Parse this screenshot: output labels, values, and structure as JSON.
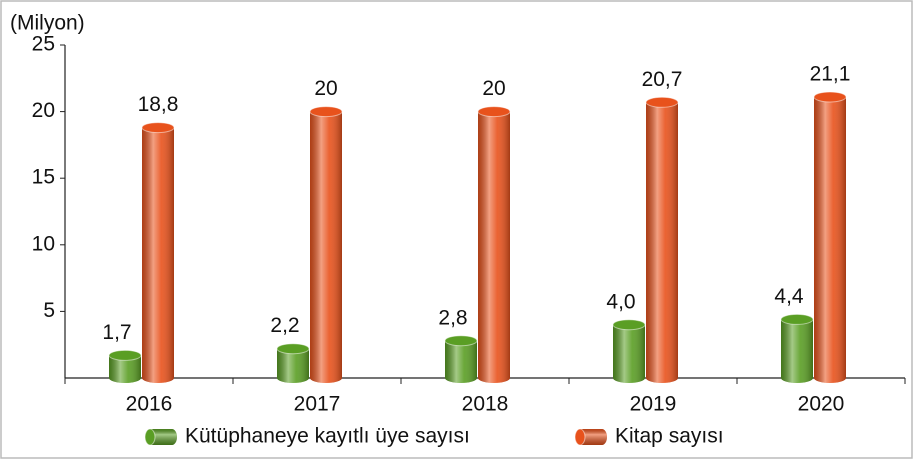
{
  "chart_data": {
    "type": "bar",
    "y_axis_label": "(Milyon)",
    "categories": [
      "2016",
      "2017",
      "2018",
      "2019",
      "2020"
    ],
    "series": [
      {
        "name": "Kütüphaneye kayıtlı üye sayısı",
        "color": "#5a9e24",
        "values": [
          1.7,
          2.2,
          2.8,
          4.0,
          4.4
        ],
        "value_labels": [
          "1,7",
          "2,2",
          "2,8",
          "4,0",
          "4,4"
        ]
      },
      {
        "name": "Kitap sayısı",
        "color": "#e8521c",
        "values": [
          18.8,
          20,
          20,
          20.7,
          21.1
        ],
        "value_labels": [
          "18,8",
          "20",
          "20",
          "20,7",
          "21,1"
        ]
      }
    ],
    "ylim": [
      0,
      25
    ],
    "yticks": [
      5,
      10,
      15,
      20,
      25
    ],
    "grid": false
  }
}
